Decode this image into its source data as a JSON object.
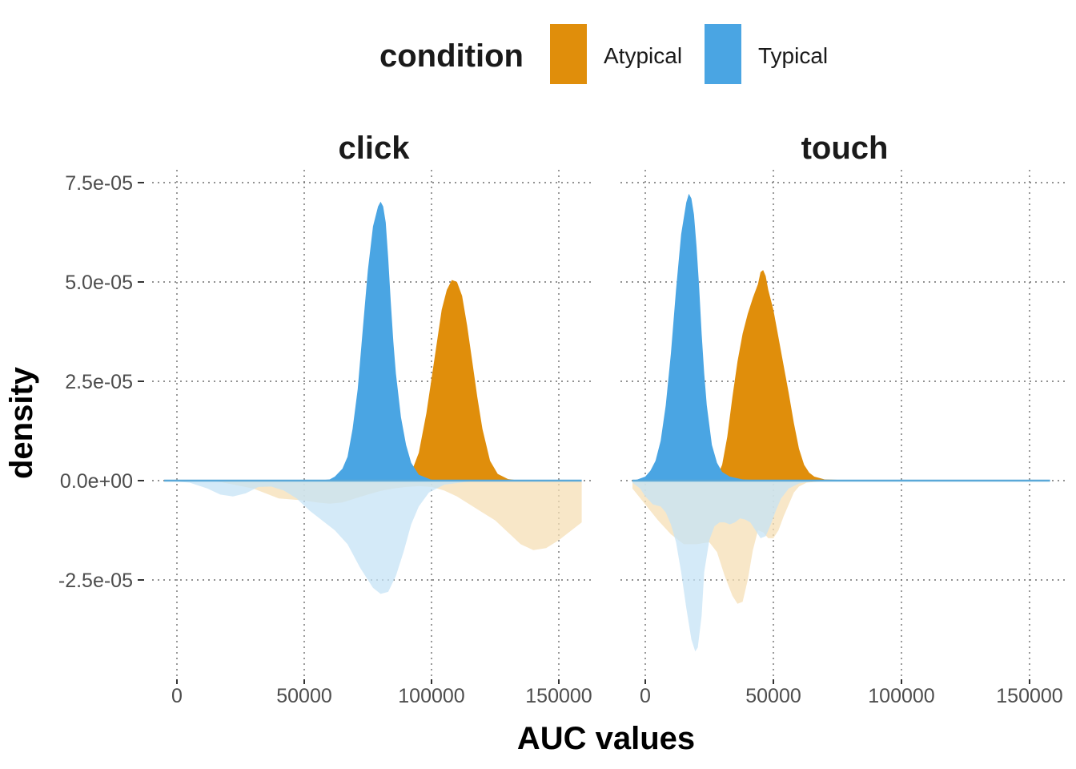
{
  "chart_data": {
    "type": "area",
    "xlabel": "AUC values",
    "ylabel": "density",
    "legend": {
      "title": "condition",
      "position": "top",
      "entries": [
        {
          "label": "Atypical",
          "color": "#E08E0B"
        },
        {
          "label": "Typical",
          "color": "#4AA5E3"
        }
      ]
    },
    "xlim": [
      -6000,
      158000
    ],
    "ylim": [
      -4.9e-05,
      7.8e-05
    ],
    "x_ticks": [
      0,
      50000,
      100000,
      150000
    ],
    "x_tick_labels": [
      "0",
      "50000",
      "100000",
      "150000"
    ],
    "y_ticks": [
      -2.5e-05,
      0,
      2.5e-05,
      5e-05,
      7.5e-05
    ],
    "y_tick_labels": [
      "-2.5e-05",
      "0.0e+00",
      "2.5e-05",
      "5.0e-05",
      "7.5e-05"
    ],
    "grid": true,
    "colors": {
      "Atypical": "#E08E0B",
      "Typical": "#4AA5E3",
      "Atypical_light": "#F5DFB6",
      "Typical_light": "#C6E3F6"
    },
    "panels": [
      {
        "name": "click",
        "x_range": [
          -5000,
          159000
        ],
        "series": [
          {
            "name": "Atypical",
            "side": "up",
            "points": [
              [
                -5000,
                0
              ],
              [
                80000,
                0
              ],
              [
                88000,
                3e-07
              ],
              [
                92000,
                2e-06
              ],
              [
                95000,
                7e-06
              ],
              [
                98000,
                1.7e-05
              ],
              [
                101000,
                3e-05
              ],
              [
                104000,
                4.3e-05
              ],
              [
                106000,
                4.8e-05
              ],
              [
                108000,
                5.05e-05
              ],
              [
                110000,
                5e-05
              ],
              [
                112000,
                4.65e-05
              ],
              [
                114000,
                3.9e-05
              ],
              [
                116000,
                3e-05
              ],
              [
                118000,
                2.1e-05
              ],
              [
                120000,
                1.3e-05
              ],
              [
                123000,
                5e-06
              ],
              [
                126000,
                1.7e-06
              ],
              [
                130000,
                4e-07
              ],
              [
                135000,
                0
              ],
              [
                159000,
                0
              ]
            ]
          },
          {
            "name": "Typical",
            "side": "up",
            "points": [
              [
                -5000,
                0
              ],
              [
                55000,
                0
              ],
              [
                60000,
                3e-07
              ],
              [
                62000,
                1e-06
              ],
              [
                65000,
                3e-06
              ],
              [
                67000,
                6e-06
              ],
              [
                69000,
                1.3e-05
              ],
              [
                71000,
                2.3e-05
              ],
              [
                73000,
                3.8e-05
              ],
              [
                75000,
                5.3e-05
              ],
              [
                77000,
                6.4e-05
              ],
              [
                79000,
                6.9e-05
              ],
              [
                80000,
                7.02e-05
              ],
              [
                81000,
                6.9e-05
              ],
              [
                82000,
                6.5e-05
              ],
              [
                83000,
                5.6e-05
              ],
              [
                84000,
                4.5e-05
              ],
              [
                85000,
                3.5e-05
              ],
              [
                86000,
                2.7e-05
              ],
              [
                88000,
                1.6e-05
              ],
              [
                90000,
                9e-06
              ],
              [
                92000,
                4.5e-06
              ],
              [
                95000,
                1.5e-06
              ],
              [
                100000,
                2e-07
              ],
              [
                105000,
                0
              ],
              [
                159000,
                0
              ]
            ]
          },
          {
            "name": "Atypical",
            "side": "down",
            "points": [
              [
                -5000,
                0
              ],
              [
                15000,
                -1e-07
              ],
              [
                30000,
                -2e-06
              ],
              [
                40000,
                -4.5e-06
              ],
              [
                50000,
                -5e-06
              ],
              [
                55000,
                -5.5e-06
              ],
              [
                60000,
                -5.8e-06
              ],
              [
                65000,
                -5.5e-06
              ],
              [
                70000,
                -4.5e-06
              ],
              [
                75000,
                -3.5e-06
              ],
              [
                80000,
                -2.6e-06
              ],
              [
                85000,
                -2e-06
              ],
              [
                90000,
                -1.6e-06
              ],
              [
                95000,
                -1.4e-06
              ],
              [
                100000,
                -1.6e-06
              ],
              [
                105000,
                -2.5e-06
              ],
              [
                110000,
                -4e-06
              ],
              [
                115000,
                -6e-06
              ],
              [
                120000,
                -8e-06
              ],
              [
                125000,
                -1e-05
              ],
              [
                130000,
                -1.3e-05
              ],
              [
                135000,
                -1.6e-05
              ],
              [
                140000,
                -1.75e-05
              ],
              [
                145000,
                -1.7e-05
              ],
              [
                150000,
                -1.5e-05
              ],
              [
                155000,
                -1.25e-05
              ],
              [
                159000,
                -1.05e-05
              ]
            ]
          },
          {
            "name": "Typical",
            "side": "down",
            "points": [
              [
                -5000,
                0
              ],
              [
                5000,
                -5e-07
              ],
              [
                12000,
                -2e-06
              ],
              [
                17000,
                -3.5e-06
              ],
              [
                22000,
                -4e-06
              ],
              [
                27000,
                -3.2e-06
              ],
              [
                32000,
                -1.6e-06
              ],
              [
                37000,
                -1.5e-06
              ],
              [
                42000,
                -2.5e-06
              ],
              [
                47000,
                -4.5e-06
              ],
              [
                52000,
                -7.5e-06
              ],
              [
                57000,
                -1e-05
              ],
              [
                62000,
                -1.25e-05
              ],
              [
                67000,
                -1.6e-05
              ],
              [
                72000,
                -2.2e-05
              ],
              [
                77000,
                -2.7e-05
              ],
              [
                80000,
                -2.85e-05
              ],
              [
                83000,
                -2.8e-05
              ],
              [
                86000,
                -2.4e-05
              ],
              [
                89000,
                -1.8e-05
              ],
              [
                92000,
                -1.1e-05
              ],
              [
                95000,
                -6.5e-06
              ],
              [
                99000,
                -3e-06
              ],
              [
                105000,
                -1e-06
              ],
              [
                115000,
                -2e-07
              ],
              [
                130000,
                0
              ],
              [
                159000,
                0
              ]
            ]
          }
        ]
      },
      {
        "name": "touch",
        "x_range": [
          -5000,
          158000
        ],
        "series": [
          {
            "name": "Atypical",
            "side": "up",
            "points": [
              [
                -5000,
                0
              ],
              [
                25000,
                0
              ],
              [
                28000,
                1e-06
              ],
              [
                30000,
                4e-06
              ],
              [
                32000,
                1.1e-05
              ],
              [
                34000,
                2.1e-05
              ],
              [
                36000,
                3e-05
              ],
              [
                38000,
                3.7e-05
              ],
              [
                40000,
                4.2e-05
              ],
              [
                42000,
                4.6e-05
              ],
              [
                44000,
                4.95e-05
              ],
              [
                45000,
                5.25e-05
              ],
              [
                46000,
                5.3e-05
              ],
              [
                47000,
                5.15e-05
              ],
              [
                48000,
                4.8e-05
              ],
              [
                50000,
                4.3e-05
              ],
              [
                52000,
                3.6e-05
              ],
              [
                54000,
                2.9e-05
              ],
              [
                56000,
                2.2e-05
              ],
              [
                58000,
                1.45e-05
              ],
              [
                60000,
                8e-06
              ],
              [
                62000,
                4e-06
              ],
              [
                64000,
                2e-06
              ],
              [
                66000,
                1e-06
              ],
              [
                70000,
                3e-07
              ],
              [
                75000,
                2e-07
              ],
              [
                158000,
                0
              ]
            ]
          },
          {
            "name": "Typical",
            "side": "up",
            "points": [
              [
                -5000,
                0
              ],
              [
                -3000,
                3e-07
              ],
              [
                0,
                1e-06
              ],
              [
                2000,
                2.5e-06
              ],
              [
                4000,
                5e-06
              ],
              [
                6000,
                1e-05
              ],
              [
                8000,
                1.9e-05
              ],
              [
                10000,
                3.2e-05
              ],
              [
                12000,
                4.8e-05
              ],
              [
                14000,
                6.2e-05
              ],
              [
                16000,
                7e-05
              ],
              [
                17000,
                7.22e-05
              ],
              [
                18000,
                7.1e-05
              ],
              [
                19000,
                6.7e-05
              ],
              [
                20000,
                5.9e-05
              ],
              [
                21000,
                4.9e-05
              ],
              [
                22000,
                3.7e-05
              ],
              [
                23000,
                2.7e-05
              ],
              [
                24000,
                1.9e-05
              ],
              [
                26000,
                9e-06
              ],
              [
                28000,
                4.5e-06
              ],
              [
                30000,
                2.2e-06
              ],
              [
                33000,
                1e-06
              ],
              [
                38000,
                3e-07
              ],
              [
                45000,
                1e-07
              ],
              [
                158000,
                0
              ]
            ]
          },
          {
            "name": "Atypical",
            "side": "down",
            "points": [
              [
                -5000,
                -2e-06
              ],
              [
                0,
                -6e-06
              ],
              [
                5000,
                -1e-05
              ],
              [
                10000,
                -1.35e-05
              ],
              [
                15000,
                -1.6e-05
              ],
              [
                20000,
                -1.6e-05
              ],
              [
                25000,
                -1.55e-05
              ],
              [
                28000,
                -1.8e-05
              ],
              [
                31000,
                -2.4e-05
              ],
              [
                34000,
                -2.9e-05
              ],
              [
                36000,
                -3.1e-05
              ],
              [
                38000,
                -3.05e-05
              ],
              [
                40000,
                -2.5e-05
              ],
              [
                42000,
                -1.75e-05
              ],
              [
                44000,
                -1.25e-05
              ],
              [
                46000,
                -1.3e-05
              ],
              [
                48000,
                -1.45e-05
              ],
              [
                50000,
                -1.45e-05
              ],
              [
                52000,
                -1.25e-05
              ],
              [
                54000,
                -9e-06
              ],
              [
                56000,
                -6e-06
              ],
              [
                58000,
                -3e-06
              ],
              [
                60000,
                -1.5e-06
              ],
              [
                63000,
                -5e-07
              ],
              [
                70000,
                -1e-07
              ],
              [
                158000,
                0
              ]
            ]
          },
          {
            "name": "Typical",
            "side": "down",
            "points": [
              [
                -5000,
                -5e-07
              ],
              [
                -2000,
                -2e-06
              ],
              [
                0,
                -4e-06
              ],
              [
                3000,
                -6e-06
              ],
              [
                6000,
                -6.5e-06
              ],
              [
                8000,
                -8e-06
              ],
              [
                10000,
                -1.1e-05
              ],
              [
                12000,
                -1.55e-05
              ],
              [
                14000,
                -2.3e-05
              ],
              [
                16000,
                -3.2e-05
              ],
              [
                18000,
                -4e-05
              ],
              [
                19500,
                -4.3e-05
              ],
              [
                20500,
                -4.2e-05
              ],
              [
                22000,
                -3.4e-05
              ],
              [
                23000,
                -2.3e-05
              ],
              [
                25000,
                -1.5e-05
              ],
              [
                27000,
                -1.15e-05
              ],
              [
                29000,
                -1.05e-05
              ],
              [
                31000,
                -1.05e-05
              ],
              [
                33000,
                -1.1e-05
              ],
              [
                35000,
                -1.05e-05
              ],
              [
                37000,
                -9.5e-06
              ],
              [
                39000,
                -9.8e-06
              ],
              [
                41000,
                -1.05e-05
              ],
              [
                43000,
                -1.25e-05
              ],
              [
                45000,
                -1.45e-05
              ],
              [
                47000,
                -1.4e-05
              ],
              [
                49000,
                -1.1e-05
              ],
              [
                51000,
                -7.5e-06
              ],
              [
                53000,
                -4.5e-06
              ],
              [
                56000,
                -2e-06
              ],
              [
                60000,
                -7e-07
              ],
              [
                65000,
                -2e-07
              ],
              [
                75000,
                0
              ],
              [
                158000,
                0
              ]
            ]
          }
        ]
      }
    ]
  }
}
